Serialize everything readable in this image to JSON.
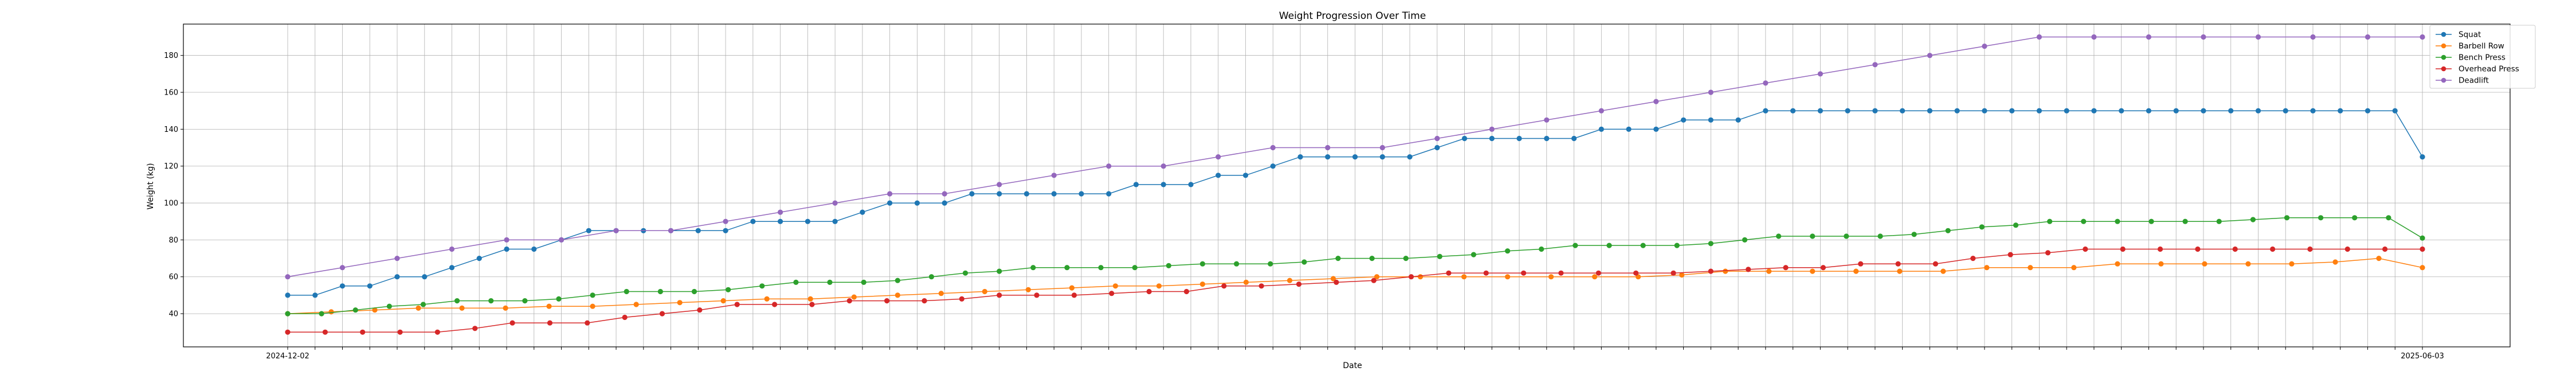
{
  "chart_data": {
    "type": "line",
    "title": "Weight Progression Over Time",
    "xlabel": "Date",
    "ylabel": "Weight (kg)",
    "x_start_label": "2024-12-02",
    "x_end_label": "2025-06-03",
    "ylim": [
      22,
      197
    ],
    "yticks": [
      40,
      60,
      80,
      100,
      120,
      140,
      160,
      180
    ],
    "grid": true,
    "legend_position": "top-right",
    "series": [
      {
        "name": "Squat",
        "color": "#1f77b4",
        "values": [
          50,
          50,
          55,
          55,
          60,
          60,
          65,
          70,
          75,
          75,
          80,
          85,
          85,
          85,
          85,
          85,
          85,
          90,
          90,
          90,
          90,
          95,
          100,
          100,
          100,
          105,
          105,
          105,
          105,
          105,
          105,
          110,
          110,
          110,
          115,
          115,
          120,
          125,
          125,
          125,
          125,
          125,
          130,
          135,
          135,
          135,
          135,
          135,
          140,
          140,
          140,
          145,
          145,
          145,
          150,
          150,
          150,
          150,
          150,
          150,
          150,
          150,
          150,
          150,
          150,
          150,
          150,
          150,
          150,
          150,
          150,
          150,
          150,
          150,
          150,
          150,
          150,
          150,
          125
        ]
      },
      {
        "name": "Barbell Row",
        "color": "#ff7f0e",
        "values": [
          40,
          41,
          42,
          43,
          43,
          43,
          44,
          44,
          45,
          46,
          47,
          48,
          48,
          49,
          50,
          51,
          52,
          53,
          54,
          55,
          55,
          56,
          57,
          58,
          59,
          60,
          60,
          60,
          60,
          60,
          60,
          60,
          61,
          63,
          63,
          63,
          63,
          63,
          63,
          65,
          65,
          65,
          67,
          67,
          67,
          67,
          67,
          68,
          70,
          65
        ]
      },
      {
        "name": "Bench Press",
        "color": "#2ca02c",
        "values": [
          40,
          40,
          42,
          44,
          45,
          47,
          47,
          47,
          48,
          50,
          52,
          52,
          52,
          53,
          55,
          57,
          57,
          57,
          58,
          60,
          62,
          63,
          65,
          65,
          65,
          65,
          66,
          67,
          67,
          67,
          68,
          70,
          70,
          70,
          71,
          72,
          74,
          75,
          77,
          77,
          77,
          77,
          78,
          80,
          82,
          82,
          82,
          82,
          83,
          85,
          87,
          88,
          90,
          90,
          90,
          90,
          90,
          90,
          91,
          92,
          92,
          92,
          92,
          81
        ]
      },
      {
        "name": "Overhead Press",
        "color": "#d62728",
        "values": [
          30,
          30,
          30,
          30,
          30,
          32,
          35,
          35,
          35,
          38,
          40,
          42,
          45,
          45,
          45,
          47,
          47,
          47,
          48,
          50,
          50,
          50,
          51,
          52,
          52,
          55,
          55,
          56,
          57,
          58,
          60,
          62,
          62,
          62,
          62,
          62,
          62,
          62,
          63,
          64,
          65,
          65,
          67,
          67,
          67,
          70,
          72,
          73,
          75,
          75,
          75,
          75,
          75,
          75,
          75,
          75,
          75,
          75
        ]
      },
      {
        "name": "Deadlift",
        "color": "#9467bd",
        "values": [
          60,
          65,
          70,
          75,
          80,
          80,
          85,
          85,
          90,
          95,
          100,
          105,
          105,
          110,
          115,
          120,
          120,
          125,
          130,
          130,
          130,
          135,
          140,
          145,
          150,
          155,
          160,
          165,
          170,
          175,
          180,
          185,
          190,
          190,
          190,
          190,
          190,
          190,
          190,
          190
        ]
      }
    ]
  }
}
